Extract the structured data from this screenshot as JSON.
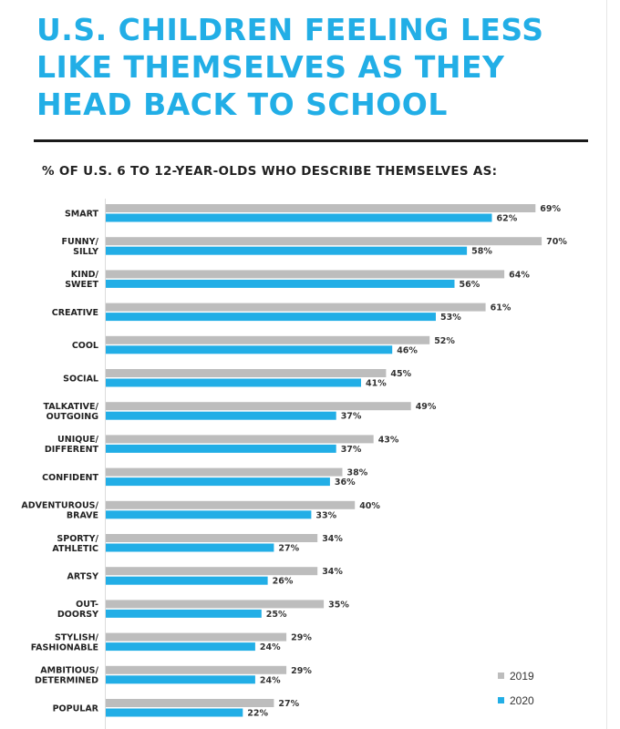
{
  "title": "U.S. CHILDREN FEELING LESS LIKE THEMSELVES AS THEY HEAD BACK TO SCHOOL",
  "subtitle": "% OF U.S. 6 TO 12-YEAR-OLDS WHO DESCRIBE THEMSELVES AS:",
  "colors": {
    "series_2019": "#bdbdbd",
    "series_2020": "#22aee6",
    "title": "#22aee6"
  },
  "legend": {
    "label_2019": "2019",
    "label_2020": "2020",
    "placement": "bottom-right"
  },
  "chart_data": {
    "type": "bar",
    "orientation": "horizontal",
    "title": "% OF U.S. 6 TO 12-YEAR-OLDS WHO DESCRIBE THEMSELVES AS:",
    "categories": [
      [
        "SMART"
      ],
      [
        "FUNNY/",
        "SILLY"
      ],
      [
        "KIND/",
        "SWEET"
      ],
      [
        "CREATIVE"
      ],
      [
        "COOL"
      ],
      [
        "SOCIAL"
      ],
      [
        "TALKATIVE/",
        "OUTGOING"
      ],
      [
        "UNIQUE/",
        "DIFFERENT"
      ],
      [
        "CONFIDENT"
      ],
      [
        "ADVENTUROUS/",
        "BRAVE"
      ],
      [
        "SPORTY/",
        "ATHLETIC"
      ],
      [
        "ARTSY"
      ],
      [
        "OUT-",
        "DOORSY"
      ],
      [
        "STYLISH/",
        "FASHIONABLE"
      ],
      [
        "AMBITIOUS/",
        "DETERMINED"
      ],
      [
        "POPULAR"
      ]
    ],
    "series": [
      {
        "name": "2019",
        "values": [
          69,
          70,
          64,
          61,
          52,
          45,
          49,
          43,
          38,
          40,
          34,
          34,
          35,
          29,
          29,
          27
        ]
      },
      {
        "name": "2020",
        "values": [
          62,
          58,
          56,
          53,
          46,
          41,
          37,
          37,
          36,
          33,
          27,
          26,
          25,
          24,
          24,
          22
        ]
      }
    ],
    "value_suffix": "%",
    "xlim": [
      0,
      100
    ],
    "grid": false
  }
}
